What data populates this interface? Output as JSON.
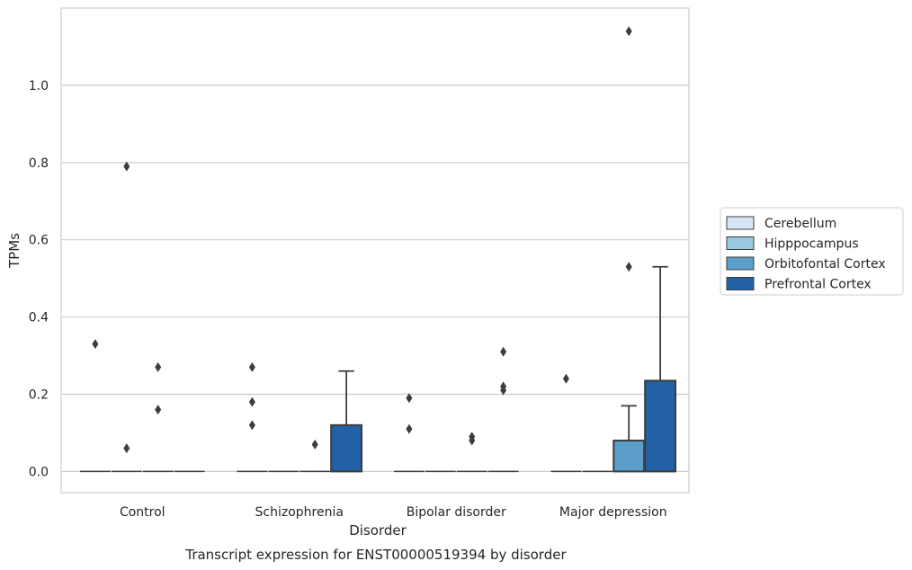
{
  "chart_data": {
    "type": "box",
    "title": "",
    "caption": "Transcript expression for ENST00000519394 by disorder",
    "xlabel": "Disorder",
    "ylabel": "TPMs",
    "ylim": [
      -0.055,
      1.2
    ],
    "yticks": [
      0.0,
      0.2,
      0.4,
      0.6,
      0.8,
      1.0
    ],
    "ytick_labels": [
      "0.0",
      "0.2",
      "0.4",
      "0.6",
      "0.8",
      "1.0"
    ],
    "grid": "horizontal",
    "legend_position": "right",
    "categories": [
      "Control",
      "Schizophrenia",
      "Bipolar disorder",
      "Major depression"
    ],
    "series": [
      {
        "name": "Cerebellum",
        "color": "#d6e6f4",
        "boxes": [
          {
            "q1": 0,
            "median": 0,
            "q3": 0,
            "whislo": 0,
            "whishi": 0,
            "fliers": [
              0.33
            ]
          },
          {
            "q1": 0,
            "median": 0,
            "q3": 0,
            "whislo": 0,
            "whishi": 0,
            "fliers": [
              0.27,
              0.18,
              0.12
            ]
          },
          {
            "q1": 0,
            "median": 0,
            "q3": 0,
            "whislo": 0,
            "whishi": 0,
            "fliers": [
              0.19,
              0.11
            ]
          },
          {
            "q1": 0,
            "median": 0,
            "q3": 0,
            "whislo": 0,
            "whishi": 0,
            "fliers": [
              0.24
            ]
          }
        ]
      },
      {
        "name": "Hipppocampus",
        "color": "#9ac8e0",
        "boxes": [
          {
            "q1": 0,
            "median": 0,
            "q3": 0,
            "whislo": 0,
            "whishi": 0,
            "fliers": [
              0.79,
              0.06
            ]
          },
          {
            "q1": 0,
            "median": 0,
            "q3": 0,
            "whislo": 0,
            "whishi": 0,
            "fliers": []
          },
          {
            "q1": 0,
            "median": 0,
            "q3": 0,
            "whislo": 0,
            "whishi": 0,
            "fliers": []
          },
          {
            "q1": 0,
            "median": 0,
            "q3": 0,
            "whislo": 0,
            "whishi": 0,
            "fliers": []
          }
        ]
      },
      {
        "name": "Orbitofontal Cortex",
        "color": "#5a9ec9",
        "boxes": [
          {
            "q1": 0,
            "median": 0,
            "q3": 0,
            "whislo": 0,
            "whishi": 0,
            "fliers": [
              0.27,
              0.16
            ]
          },
          {
            "q1": 0,
            "median": 0,
            "q3": 0,
            "whislo": 0,
            "whishi": 0,
            "fliers": [
              0.07
            ]
          },
          {
            "q1": 0,
            "median": 0,
            "q3": 0,
            "whislo": 0,
            "whishi": 0,
            "fliers": [
              0.09,
              0.08
            ]
          },
          {
            "q1": 0,
            "median": 0,
            "q3": 0.08,
            "whislo": 0,
            "whishi": 0.17,
            "fliers": [
              1.14,
              0.53
            ]
          }
        ]
      },
      {
        "name": "Prefrontal Cortex",
        "color": "#2161a4",
        "boxes": [
          {
            "q1": 0,
            "median": 0,
            "q3": 0,
            "whislo": 0,
            "whishi": 0,
            "fliers": []
          },
          {
            "q1": 0,
            "median": 0,
            "q3": 0.12,
            "whislo": 0,
            "whishi": 0.26,
            "fliers": []
          },
          {
            "q1": 0,
            "median": 0,
            "q3": 0,
            "whislo": 0,
            "whishi": 0,
            "fliers": [
              0.31,
              0.22,
              0.21
            ]
          },
          {
            "q1": 0,
            "median": 0,
            "q3": 0.235,
            "whislo": 0,
            "whishi": 0.53,
            "fliers": []
          }
        ]
      }
    ]
  }
}
